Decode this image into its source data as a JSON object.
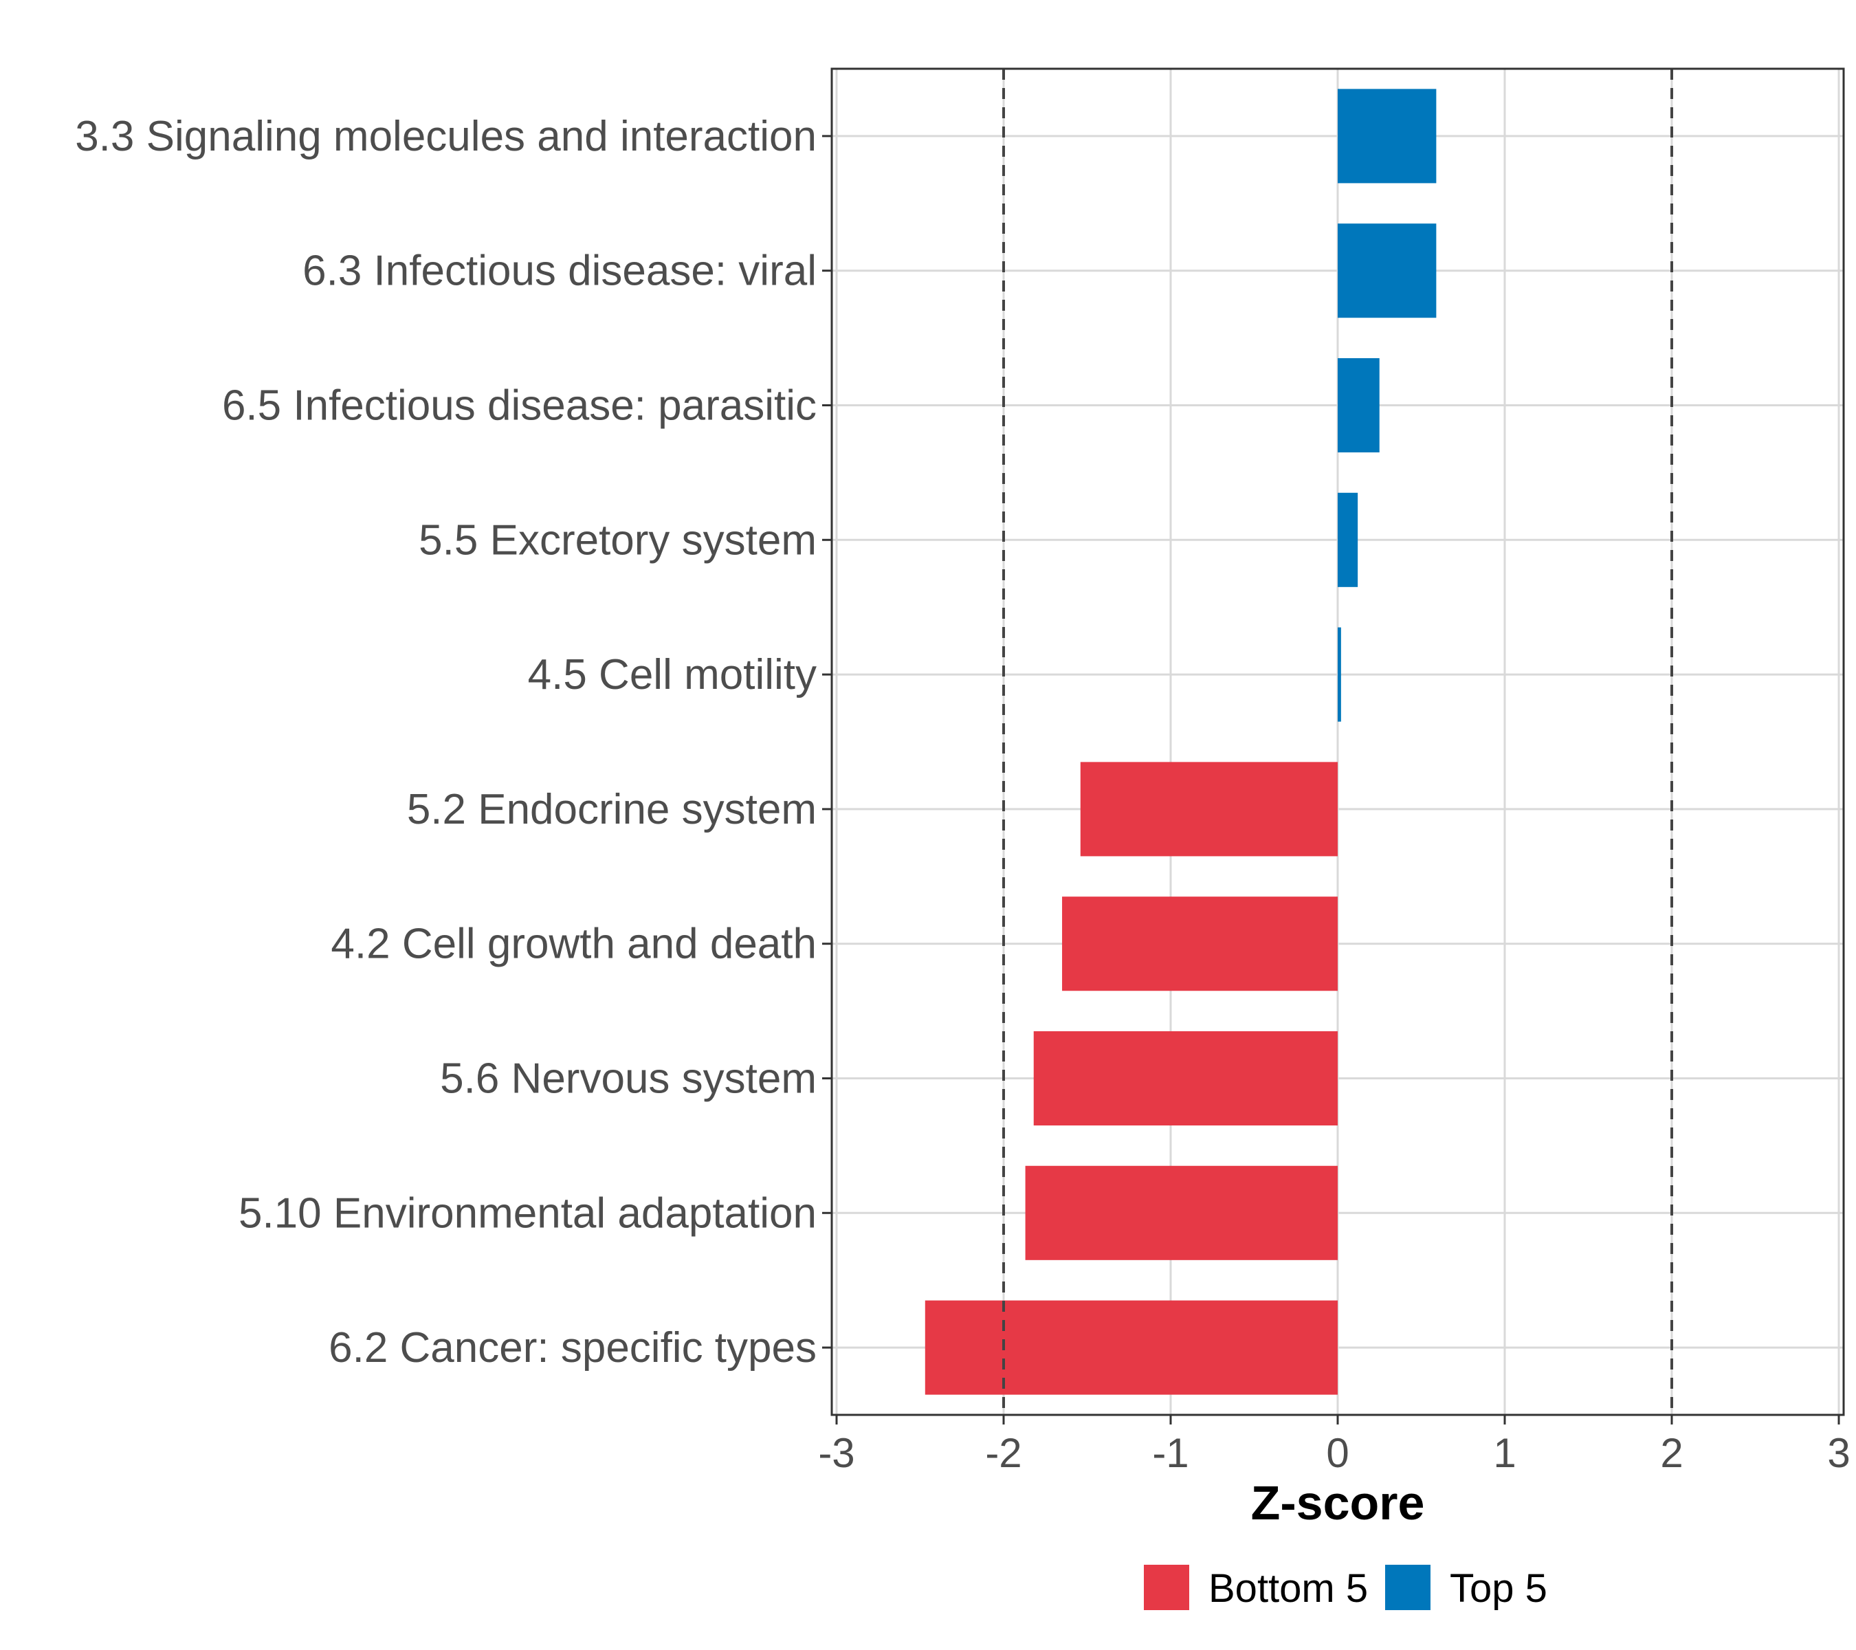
{
  "chart_data": {
    "type": "bar",
    "orientation": "horizontal",
    "title": "",
    "xlabel": "Z-score",
    "ylabel": "",
    "xlim": [
      -3,
      3
    ],
    "xticks": [
      "-3",
      "-2",
      "-1",
      "0",
      "1",
      "2",
      "3"
    ],
    "reference_lines": [
      -2,
      2
    ],
    "grid": true,
    "legend_position": "bottom",
    "categories": [
      "3.3 Signaling molecules and interaction",
      "6.3 Infectious disease: viral",
      "6.5 Infectious disease: parasitic",
      "5.5 Excretory system",
      "4.5 Cell motility",
      "5.2 Endocrine system",
      "4.2 Cell growth and death",
      "5.6 Nervous system",
      "5.10 Environmental adaptation",
      "6.2 Cancer: specific types"
    ],
    "values": [
      0.59,
      0.59,
      0.25,
      0.12,
      0.02,
      -1.54,
      -1.65,
      -1.82,
      -1.87,
      -2.47
    ],
    "groups": [
      "Top 5",
      "Top 5",
      "Top 5",
      "Top 5",
      "Top 5",
      "Bottom 5",
      "Bottom 5",
      "Bottom 5",
      "Bottom 5",
      "Bottom 5"
    ],
    "legend": [
      {
        "name": "Bottom 5",
        "color": "#e63946"
      },
      {
        "name": "Top 5",
        "color": "#0077bb"
      }
    ]
  }
}
